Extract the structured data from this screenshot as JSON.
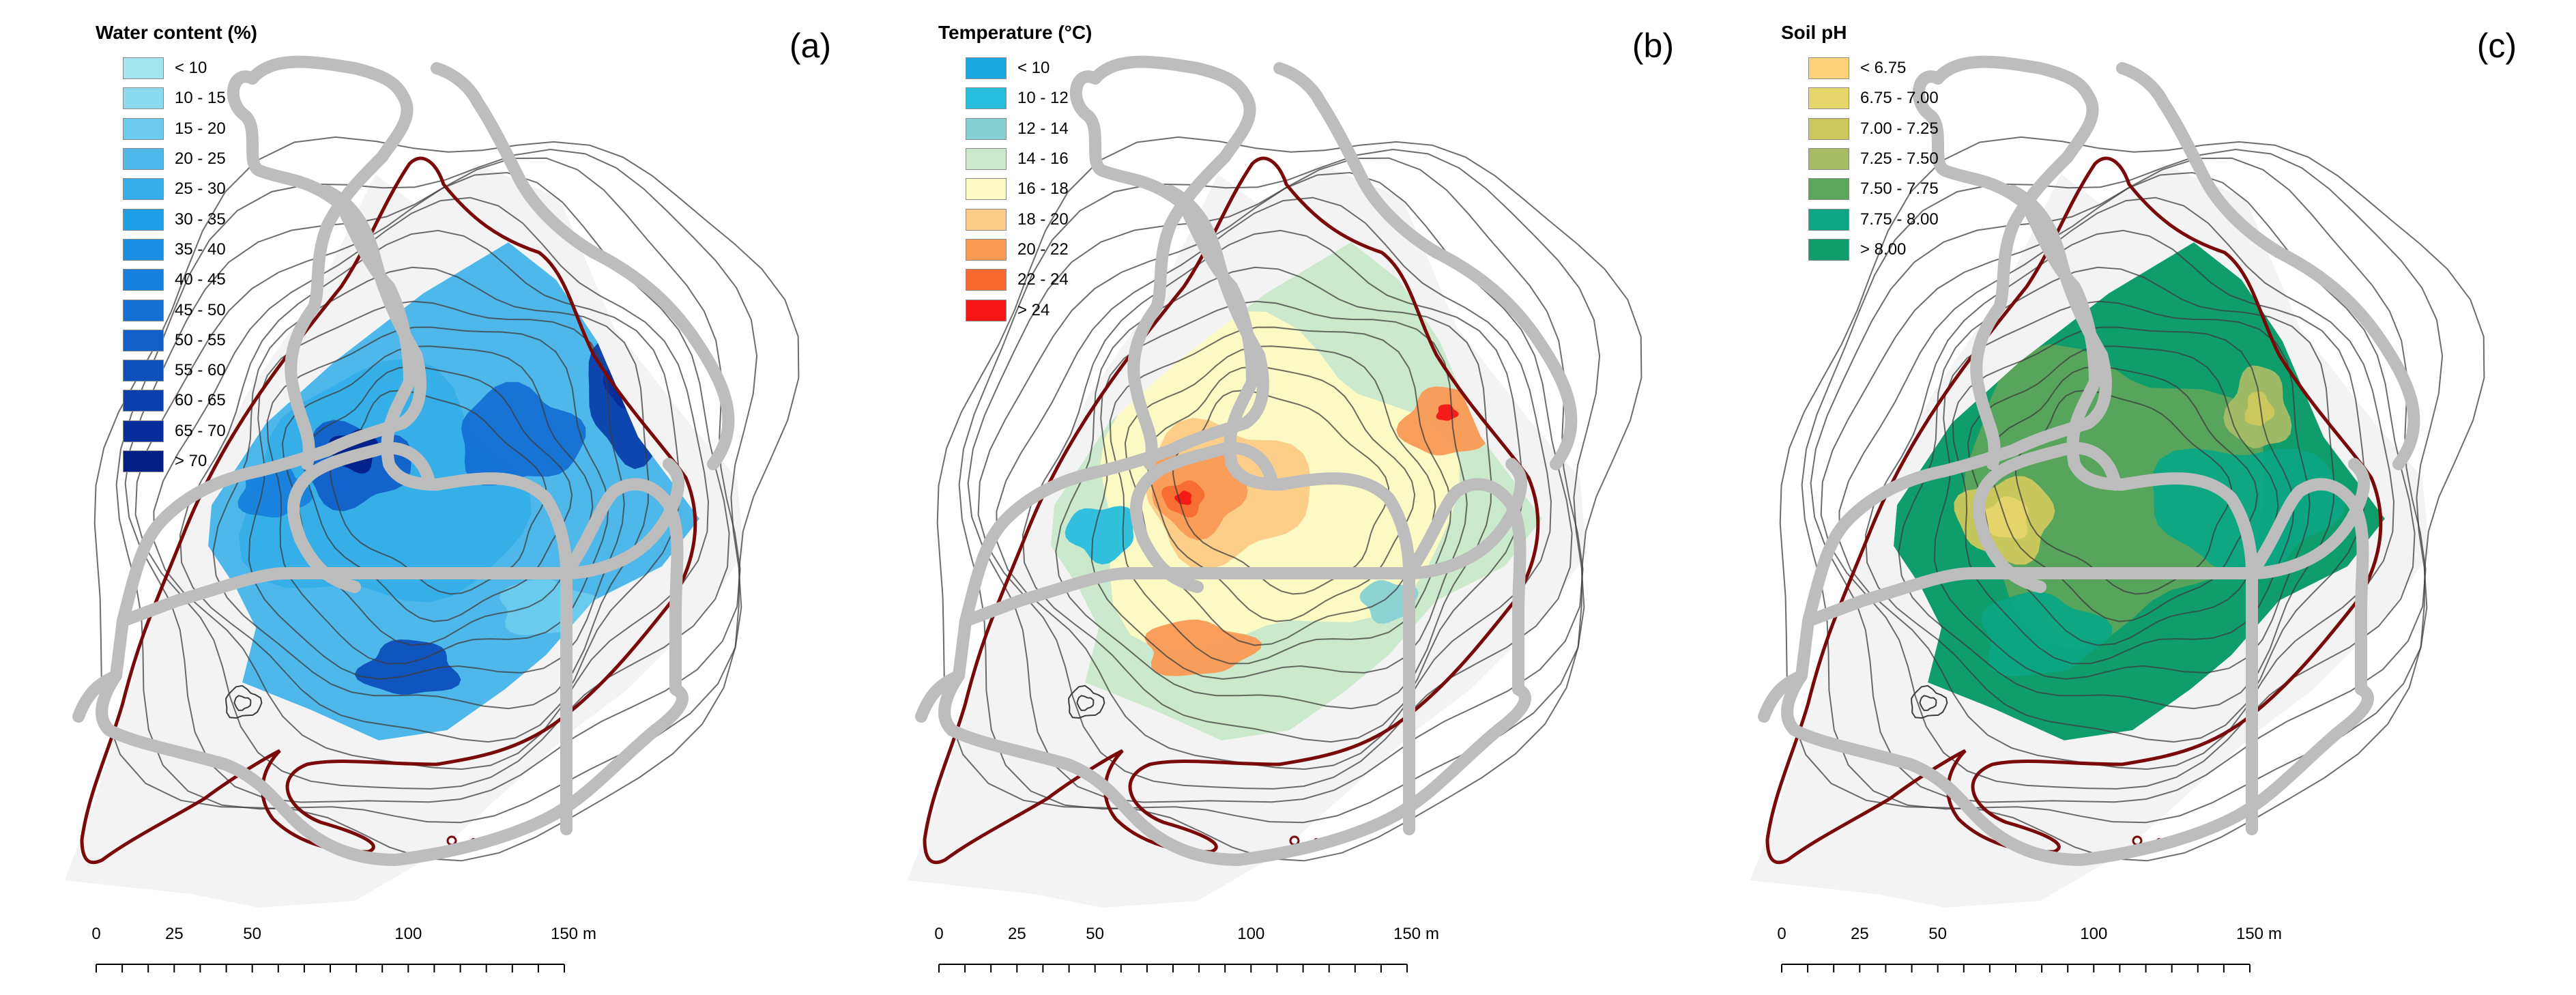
{
  "panels": [
    {
      "letter": "(a)",
      "legend_title": "Water content (%)",
      "legend": [
        {
          "label": "< 10",
          "color": "#a3e6f0"
        },
        {
          "label": "10 - 15",
          "color": "#8cdcf0"
        },
        {
          "label": "15 - 20",
          "color": "#6ccbef"
        },
        {
          "label": "20 - 25",
          "color": "#4fb8ea"
        },
        {
          "label": "25 - 30",
          "color": "#35aee9"
        },
        {
          "label": "30 - 35",
          "color": "#1f9de5"
        },
        {
          "label": "35 - 40",
          "color": "#1a8ee0"
        },
        {
          "label": "40 - 45",
          "color": "#1780dc"
        },
        {
          "label": "45 - 50",
          "color": "#1470d4"
        },
        {
          "label": "50 - 55",
          "color": "#115fc8"
        },
        {
          "label": "55 - 60",
          "color": "#0d4fbb"
        },
        {
          "label": "60 - 65",
          "color": "#0a3fac"
        },
        {
          "label": "65 - 70",
          "color": "#072d9a"
        },
        {
          "label": "> 70",
          "color": "#041e85"
        }
      ]
    },
    {
      "letter": "(b)",
      "legend_title": "Temperature (°C)",
      "legend": [
        {
          "label": "< 10",
          "color": "#1aa7e0"
        },
        {
          "label": "10 - 12",
          "color": "#27bede"
        },
        {
          "label": "12 - 14",
          "color": "#86d1d3"
        },
        {
          "label": "14 - 16",
          "color": "#cbe9cc"
        },
        {
          "label": "16 - 18",
          "color": "#fdfbc4"
        },
        {
          "label": "18 - 20",
          "color": "#fccb87"
        },
        {
          "label": "20 - 22",
          "color": "#f99a55"
        },
        {
          "label": "22 - 24",
          "color": "#f86a30"
        },
        {
          "label": "> 24",
          "color": "#f61515"
        }
      ]
    },
    {
      "letter": "(c)",
      "legend_title": "Soil pH",
      "legend": [
        {
          "label": "< 6.75",
          "color": "#fed27a"
        },
        {
          "label": "6.75 - 7.00",
          "color": "#e6d56a"
        },
        {
          "label": "7.00 - 7.25",
          "color": "#cdc85d"
        },
        {
          "label": "7.25 - 7.50",
          "color": "#a8bb67"
        },
        {
          "label": "7.50 - 7.75",
          "color": "#5ca55c"
        },
        {
          "label": "7.75 - 8.00",
          "color": "#0ca683"
        },
        {
          "label": "> 8.00",
          "color": "#0e9d6b"
        }
      ]
    }
  ],
  "scale": {
    "ticks": [
      "0",
      "25",
      "50",
      "100",
      "150"
    ],
    "unit": "m"
  },
  "colors": {
    "road": "#bdbdbd",
    "boundary": "#7a0a0a",
    "contour": "#3c3c3c",
    "background_fill": "#f3f3f3"
  }
}
